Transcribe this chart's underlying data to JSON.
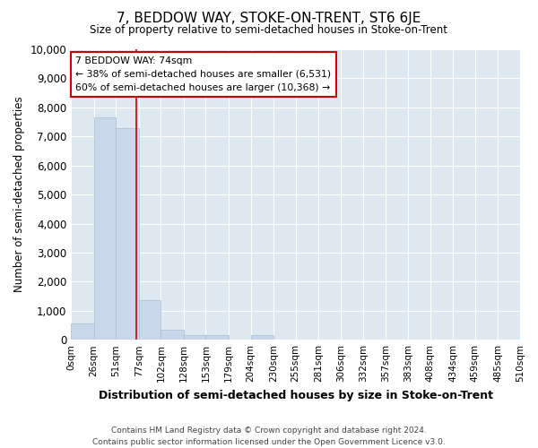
{
  "title": "7, BEDDOW WAY, STOKE-ON-TRENT, ST6 6JE",
  "subtitle": "Size of property relative to semi-detached houses in Stoke-on-Trent",
  "xlabel": "Distribution of semi-detached houses by size in Stoke-on-Trent",
  "ylabel": "Number of semi-detached properties",
  "bin_edges": [
    0,
    26,
    51,
    77,
    102,
    128,
    153,
    179,
    204,
    230,
    255,
    281,
    306,
    332,
    357,
    383,
    408,
    434,
    459,
    485,
    510
  ],
  "bar_heights": [
    550,
    7650,
    7300,
    1350,
    350,
    175,
    150,
    0,
    150,
    0,
    0,
    0,
    0,
    0,
    0,
    0,
    0,
    0,
    0,
    0
  ],
  "bar_color": "#c8d8ea",
  "bar_edgecolor": "#aabdd0",
  "property_size": 74,
  "vline_color": "#cc0000",
  "annotation_line1": "7 BEDDOW WAY: 74sqm",
  "annotation_line2": "← 38% of semi-detached houses are smaller (6,531)",
  "annotation_line3": "60% of semi-detached houses are larger (10,368) →",
  "annotation_box_color": "#cc0000",
  "ylim": [
    0,
    10000
  ],
  "yticks": [
    0,
    1000,
    2000,
    3000,
    4000,
    5000,
    6000,
    7000,
    8000,
    9000,
    10000
  ],
  "footer_line1": "Contains HM Land Registry data © Crown copyright and database right 2024.",
  "footer_line2": "Contains public sector information licensed under the Open Government Licence v3.0.",
  "fig_background_color": "#ffffff",
  "plot_background_color": "#dde8f0",
  "grid_color": "#ffffff"
}
